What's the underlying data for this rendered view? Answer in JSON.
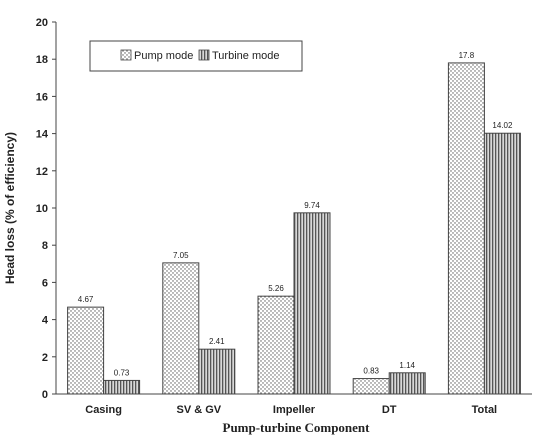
{
  "chart_data": {
    "type": "bar",
    "categories": [
      "Casing",
      "SV & GV",
      "Impeller",
      "DT",
      "Total"
    ],
    "series": [
      {
        "name": "Pump mode",
        "values": [
          4.67,
          7.05,
          5.26,
          0.83,
          17.8
        ],
        "labels": [
          "4.67",
          "7.05",
          "5.26",
          "0.83",
          "17.8"
        ],
        "pattern": "dots"
      },
      {
        "name": "Turbine mode",
        "values": [
          0.73,
          2.41,
          9.74,
          1.14,
          14.02
        ],
        "labels": [
          "0.73",
          "2.41",
          "9.74",
          "1.14",
          "14.02"
        ],
        "pattern": "vertical-lines"
      }
    ],
    "title": "",
    "xlabel": "Pump-turbine Component",
    "ylabel": "Head loss (% of efficiency)",
    "ylim": [
      0,
      20
    ],
    "yticks": [
      "0",
      "2",
      "4",
      "6",
      "8",
      "10",
      "12",
      "14",
      "16",
      "18",
      "20"
    ],
    "grid": false,
    "legend": "top-left"
  }
}
